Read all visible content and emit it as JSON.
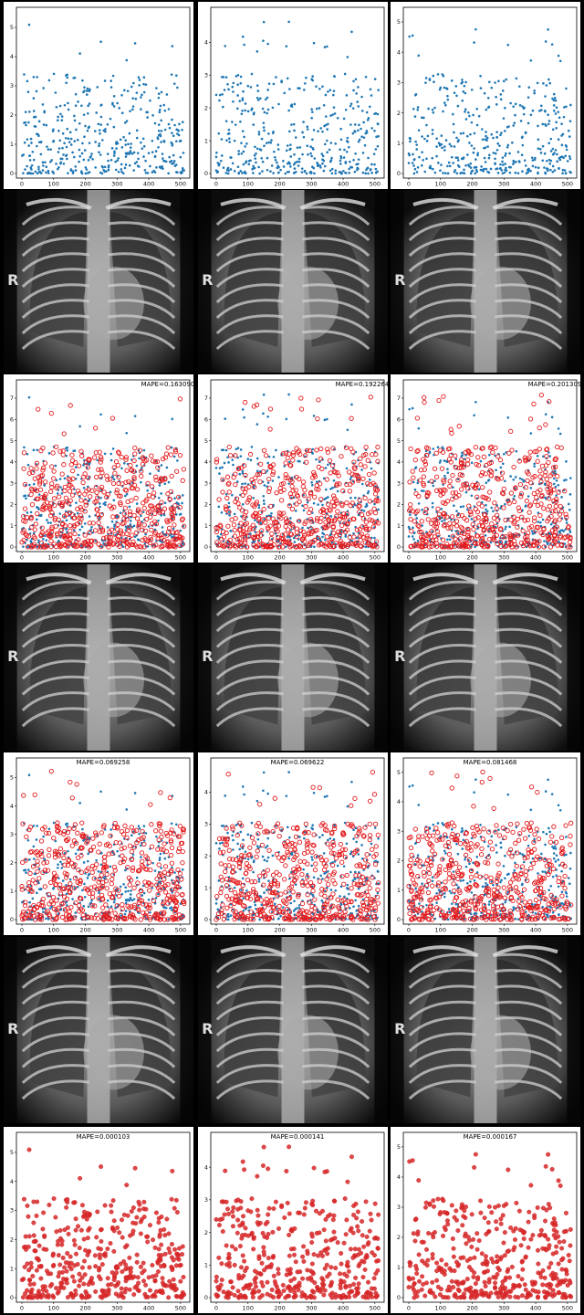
{
  "colors": {
    "ground_truth": "#1f77b4",
    "prediction_open": "#e41a1c",
    "prediction_filled": "#d62728",
    "axes": "#000000",
    "background": "#ffffff"
  },
  "xray": {
    "side_marker": "R"
  },
  "chart_data": [
    {
      "row": 1,
      "col": 1,
      "type": "scatter",
      "title": "",
      "mape_label": "",
      "mode": "blue",
      "seed": 11,
      "xlim": [
        0,
        512
      ],
      "ylim": [
        0,
        5.5
      ],
      "xticks": [
        "0",
        "100",
        "200",
        "300",
        "400",
        "500"
      ],
      "yticks": [
        "0",
        "1",
        "2",
        "3",
        "4",
        "5"
      ]
    },
    {
      "row": 1,
      "col": 2,
      "type": "scatter",
      "title": "",
      "mape_label": "",
      "mode": "blue",
      "seed": 22,
      "xlim": [
        0,
        512
      ],
      "ylim": [
        0,
        4.9
      ],
      "xticks": [
        "0",
        "100",
        "200",
        "300",
        "400",
        "500"
      ],
      "yticks": [
        "0",
        "1",
        "2",
        "3",
        "4"
      ]
    },
    {
      "row": 1,
      "col": 3,
      "type": "scatter",
      "title": "",
      "mape_label": "",
      "mode": "blue",
      "seed": 33,
      "xlim": [
        0,
        512
      ],
      "ylim": [
        0,
        5.3
      ],
      "xticks": [
        "0",
        "100",
        "200",
        "300",
        "400",
        "500"
      ],
      "yticks": [
        "0",
        "1",
        "2",
        "3",
        "4",
        "5"
      ]
    },
    {
      "row": 3,
      "col": 1,
      "type": "scatter",
      "mape_label": "MAPE=0.163090",
      "mode": "overlay",
      "seed": 11,
      "pseed": 44,
      "xlim": [
        0,
        512
      ],
      "ylim": [
        0,
        7.6
      ],
      "xticks": [
        "0",
        "100",
        "200",
        "300",
        "400",
        "500"
      ],
      "yticks": [
        "0",
        "1",
        "2",
        "3",
        "4",
        "5",
        "6",
        "7"
      ]
    },
    {
      "row": 3,
      "col": 2,
      "type": "scatter",
      "mape_label": "MAPE=0.192264",
      "mode": "overlay",
      "seed": 22,
      "pseed": 55,
      "xlim": [
        0,
        512
      ],
      "ylim": [
        0,
        7.6
      ],
      "xticks": [
        "0",
        "100",
        "200",
        "300",
        "400",
        "500"
      ],
      "yticks": [
        "0",
        "1",
        "2",
        "3",
        "4",
        "5",
        "6",
        "7"
      ]
    },
    {
      "row": 3,
      "col": 3,
      "type": "scatter",
      "mape_label": "MAPE=0.201309",
      "mode": "overlay",
      "seed": 33,
      "pseed": 66,
      "xlim": [
        0,
        512
      ],
      "ylim": [
        0,
        7.6
      ],
      "xticks": [
        "0",
        "100",
        "200",
        "300",
        "400",
        "500"
      ],
      "yticks": [
        "0",
        "1",
        "2",
        "3",
        "4",
        "5",
        "6",
        "7"
      ]
    },
    {
      "row": 5,
      "col": 1,
      "type": "scatter",
      "mape_label": "MAPE=0.069258",
      "mode": "overlay",
      "seed": 11,
      "pseed": 77,
      "xlim": [
        0,
        512
      ],
      "ylim": [
        0,
        5.5
      ],
      "xticks": [
        "0",
        "100",
        "200",
        "300",
        "400",
        "500"
      ],
      "yticks": [
        "0",
        "1",
        "2",
        "3",
        "4",
        "5"
      ]
    },
    {
      "row": 5,
      "col": 2,
      "type": "scatter",
      "mape_label": "MAPE=0.069622",
      "mode": "overlay",
      "seed": 22,
      "pseed": 88,
      "xlim": [
        0,
        512
      ],
      "ylim": [
        0,
        4.9
      ],
      "xticks": [
        "0",
        "100",
        "200",
        "300",
        "400",
        "500"
      ],
      "yticks": [
        "0",
        "1",
        "2",
        "3",
        "4"
      ]
    },
    {
      "row": 5,
      "col": 3,
      "type": "scatter",
      "mape_label": "MAPE=0.081468",
      "mode": "overlay",
      "seed": 33,
      "pseed": 99,
      "xlim": [
        0,
        512
      ],
      "ylim": [
        0,
        5.3
      ],
      "xticks": [
        "0",
        "100",
        "200",
        "300",
        "400",
        "500"
      ],
      "yticks": [
        "0",
        "1",
        "2",
        "3",
        "4",
        "5"
      ]
    },
    {
      "row": 7,
      "col": 1,
      "type": "scatter",
      "mape_label": "MAPE=0.000103",
      "mode": "red",
      "seed": 11,
      "xlim": [
        0,
        512
      ],
      "ylim": [
        0,
        5.5
      ],
      "xticks": [
        "0",
        "100",
        "200",
        "300",
        "400",
        "500"
      ],
      "yticks": [
        "0",
        "1",
        "2",
        "3",
        "4",
        "5"
      ]
    },
    {
      "row": 7,
      "col": 2,
      "type": "scatter",
      "mape_label": "MAPE=0.000141",
      "mode": "red",
      "seed": 22,
      "xlim": [
        0,
        512
      ],
      "ylim": [
        0,
        4.9
      ],
      "xticks": [
        "0",
        "100",
        "200",
        "300",
        "400",
        "500"
      ],
      "yticks": [
        "0",
        "1",
        "2",
        "3",
        "4"
      ]
    },
    {
      "row": 7,
      "col": 3,
      "type": "scatter",
      "mape_label": "MAPE=0.000167",
      "mode": "red",
      "seed": 33,
      "xlim": [
        0,
        512
      ],
      "ylim": [
        0,
        5.3
      ],
      "xticks": [
        "0",
        "100",
        "200",
        "300",
        "400",
        "500"
      ],
      "yticks": [
        "0",
        "1",
        "2",
        "3",
        "4",
        "5"
      ]
    }
  ]
}
